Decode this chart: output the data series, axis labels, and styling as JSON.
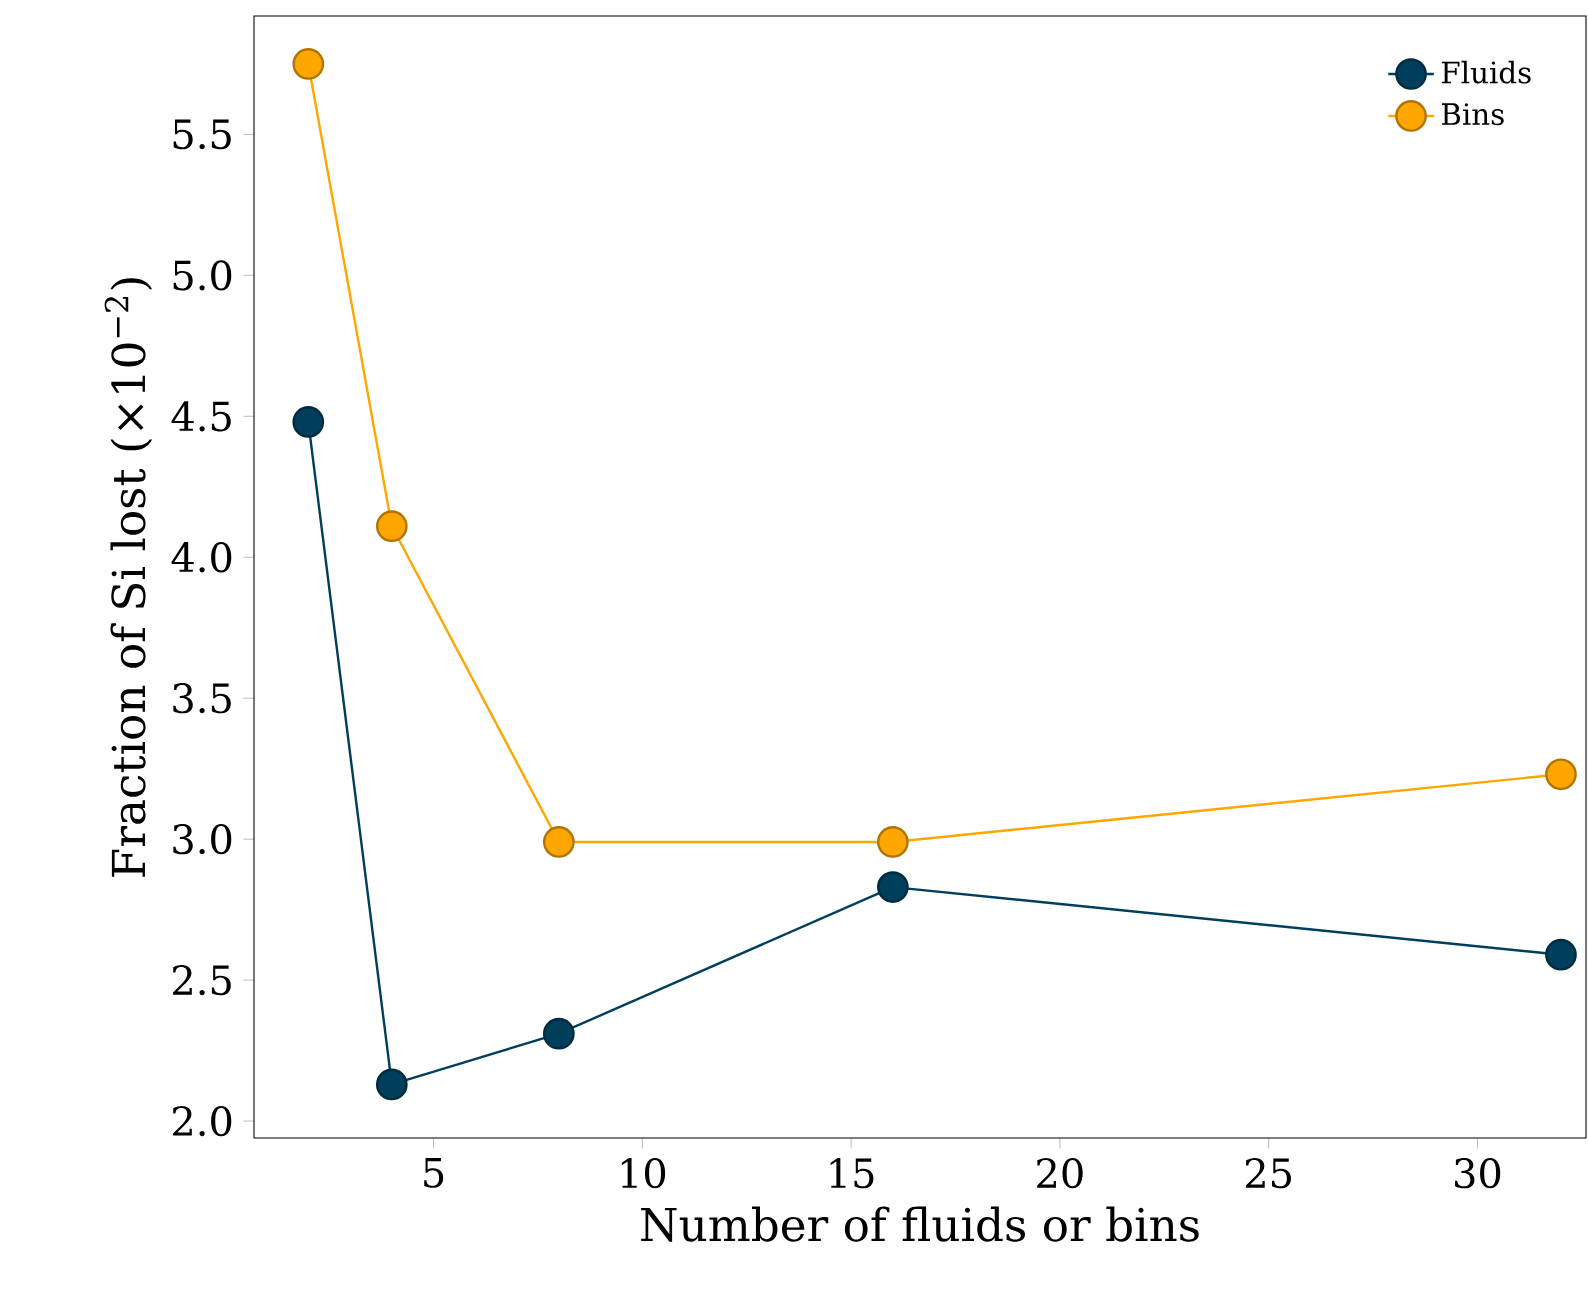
{
  "chart_data": {
    "type": "line",
    "xlabel": "Number of fluids or bins",
    "ylabel": "Fraction of Si lost (×10$^{−2}$)",
    "xlim": [
      0.7,
      32.6
    ],
    "ylim": [
      1.94,
      5.92
    ],
    "xticks": [
      5,
      10,
      15,
      20,
      25,
      30
    ],
    "yticks": [
      {
        "value": 2.0,
        "label": "2.0"
      },
      {
        "value": 2.5,
        "label": "2.5"
      },
      {
        "value": 3.0,
        "label": "3.0"
      },
      {
        "value": 3.5,
        "label": "3.5"
      },
      {
        "value": 4.0,
        "label": "4.0"
      },
      {
        "value": 4.5,
        "label": "4.5"
      },
      {
        "value": 5.0,
        "label": "5.0"
      },
      {
        "value": 5.5,
        "label": "5.5"
      }
    ],
    "x": [
      2,
      4,
      8,
      16,
      32
    ],
    "series": [
      {
        "name": "Fluids",
        "color": "#003f5c",
        "values": [
          4.48,
          2.13,
          2.31,
          2.83,
          2.59
        ]
      },
      {
        "name": "Bins",
        "color": "#ffa600",
        "values": [
          5.75,
          4.11,
          2.99,
          2.99,
          3.23
        ]
      }
    ],
    "marker": "circle",
    "line_style": "solid",
    "legend": "top right",
    "grid": false
  }
}
